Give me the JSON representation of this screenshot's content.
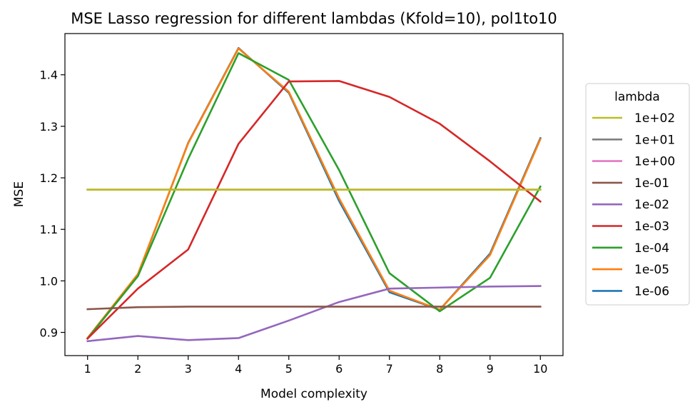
{
  "chart_data": {
    "type": "line",
    "title": "MSE Lasso regression for different lambdas (Kfold=10), pol1to10",
    "xlabel": "Model complexity",
    "ylabel": "MSE",
    "x": [
      1,
      2,
      3,
      4,
      5,
      6,
      7,
      8,
      9,
      10
    ],
    "xlim": [
      0.55,
      10.45
    ],
    "ylim": [
      0.855,
      1.48
    ],
    "xticks": [
      "1",
      "2",
      "3",
      "4",
      "5",
      "6",
      "7",
      "8",
      "9",
      "10"
    ],
    "yticks": [
      "0.9",
      "1.0",
      "1.1",
      "1.2",
      "1.3",
      "1.4"
    ],
    "ytick_values": [
      0.9,
      1.0,
      1.1,
      1.2,
      1.3,
      1.4
    ],
    "grid": false,
    "legend": {
      "title": "lambda",
      "placement": "right"
    },
    "series": [
      {
        "name": "1e+02",
        "color": "#bcbd22",
        "values": [
          1.177,
          1.177,
          1.177,
          1.177,
          1.177,
          1.177,
          1.177,
          1.177,
          1.177,
          1.177
        ]
      },
      {
        "name": "1e+01",
        "color": "#7f7f7f",
        "values": [
          1.177,
          1.177,
          1.177,
          1.177,
          1.177,
          1.177,
          1.177,
          1.177,
          1.177,
          1.177
        ]
      },
      {
        "name": "1e+00",
        "color": "#e377c2",
        "values": [
          1.177,
          1.177,
          1.177,
          1.177,
          1.177,
          1.177,
          1.177,
          1.177,
          1.177,
          1.177
        ]
      },
      {
        "name": "1e-01",
        "color": "#8c564b",
        "values": [
          0.945,
          0.949,
          0.95,
          0.95,
          0.95,
          0.95,
          0.95,
          0.95,
          0.95,
          0.95
        ]
      },
      {
        "name": "1e-02",
        "color": "#9467bd",
        "values": [
          0.883,
          0.893,
          0.885,
          0.889,
          0.923,
          0.959,
          0.985,
          0.987,
          0.989,
          0.99
        ]
      },
      {
        "name": "1e-03",
        "color": "#d62728",
        "values": [
          0.888,
          0.985,
          1.061,
          1.266,
          1.387,
          1.388,
          1.357,
          1.305,
          1.232,
          1.154
        ]
      },
      {
        "name": "1e-04",
        "color": "#2ca02c",
        "values": [
          0.888,
          1.009,
          1.237,
          1.442,
          1.39,
          1.215,
          1.015,
          0.941,
          1.006,
          1.183
        ]
      },
      {
        "name": "1e-05",
        "color": "#ff7f0e",
        "values": [
          0.889,
          1.013,
          1.267,
          1.451,
          1.367,
          1.16,
          0.981,
          0.944,
          1.05,
          1.275
        ]
      },
      {
        "name": "1e-06",
        "color": "#1f77b4",
        "values": [
          0.889,
          1.012,
          1.268,
          1.452,
          1.365,
          1.155,
          0.978,
          0.944,
          1.053,
          1.277
        ]
      }
    ]
  }
}
